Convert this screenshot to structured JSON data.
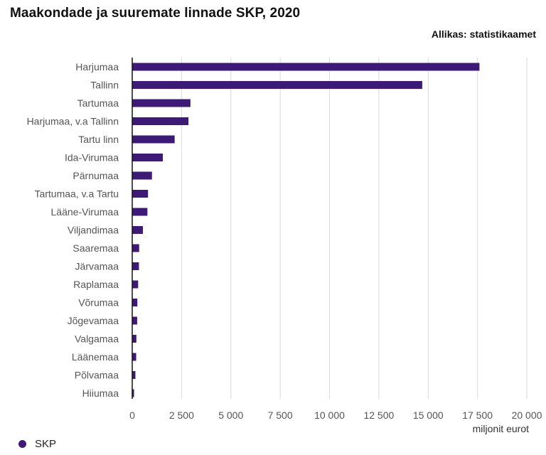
{
  "title": "Maakondade ja suuremate linnade SKP, 2020",
  "source": "Allikas: statistikaamet",
  "colors": {
    "bar": "#3d1a78",
    "grid": "#d9d9d9",
    "axis": "#111111"
  },
  "chart_data": {
    "type": "bar",
    "orientation": "horizontal",
    "categories": [
      "Harjumaa",
      "Tallinn",
      "Tartumaa",
      "Harjumaa, v.a Tallinn",
      "Tartu linn",
      "Ida-Virumaa",
      "Pärnumaa",
      "Tartumaa, v.a Tartu",
      "Lääne-Virumaa",
      "Viljandimaa",
      "Saaremaa",
      "Järvamaa",
      "Raplamaa",
      "Võrumaa",
      "Jõgevamaa",
      "Valgamaa",
      "Läänemaa",
      "Põlvamaa",
      "Hiiumaa"
    ],
    "series": [
      {
        "name": "SKP",
        "values": [
          17600,
          14700,
          2950,
          2850,
          2150,
          1550,
          1000,
          800,
          770,
          540,
          350,
          340,
          300,
          260,
          250,
          210,
          200,
          160,
          90
        ]
      }
    ],
    "xlim": [
      0,
      20000
    ],
    "xticks": [
      0,
      2500,
      5000,
      7500,
      10000,
      12500,
      15000,
      17500,
      20000
    ],
    "xtick_labels": [
      "0",
      "2 500",
      "5 000",
      "7 500",
      "10 000",
      "12 500",
      "15 000",
      "17 500",
      "20 000"
    ],
    "xlabel": "miljonit eurot",
    "grid": true,
    "legend": "bottom-left"
  }
}
